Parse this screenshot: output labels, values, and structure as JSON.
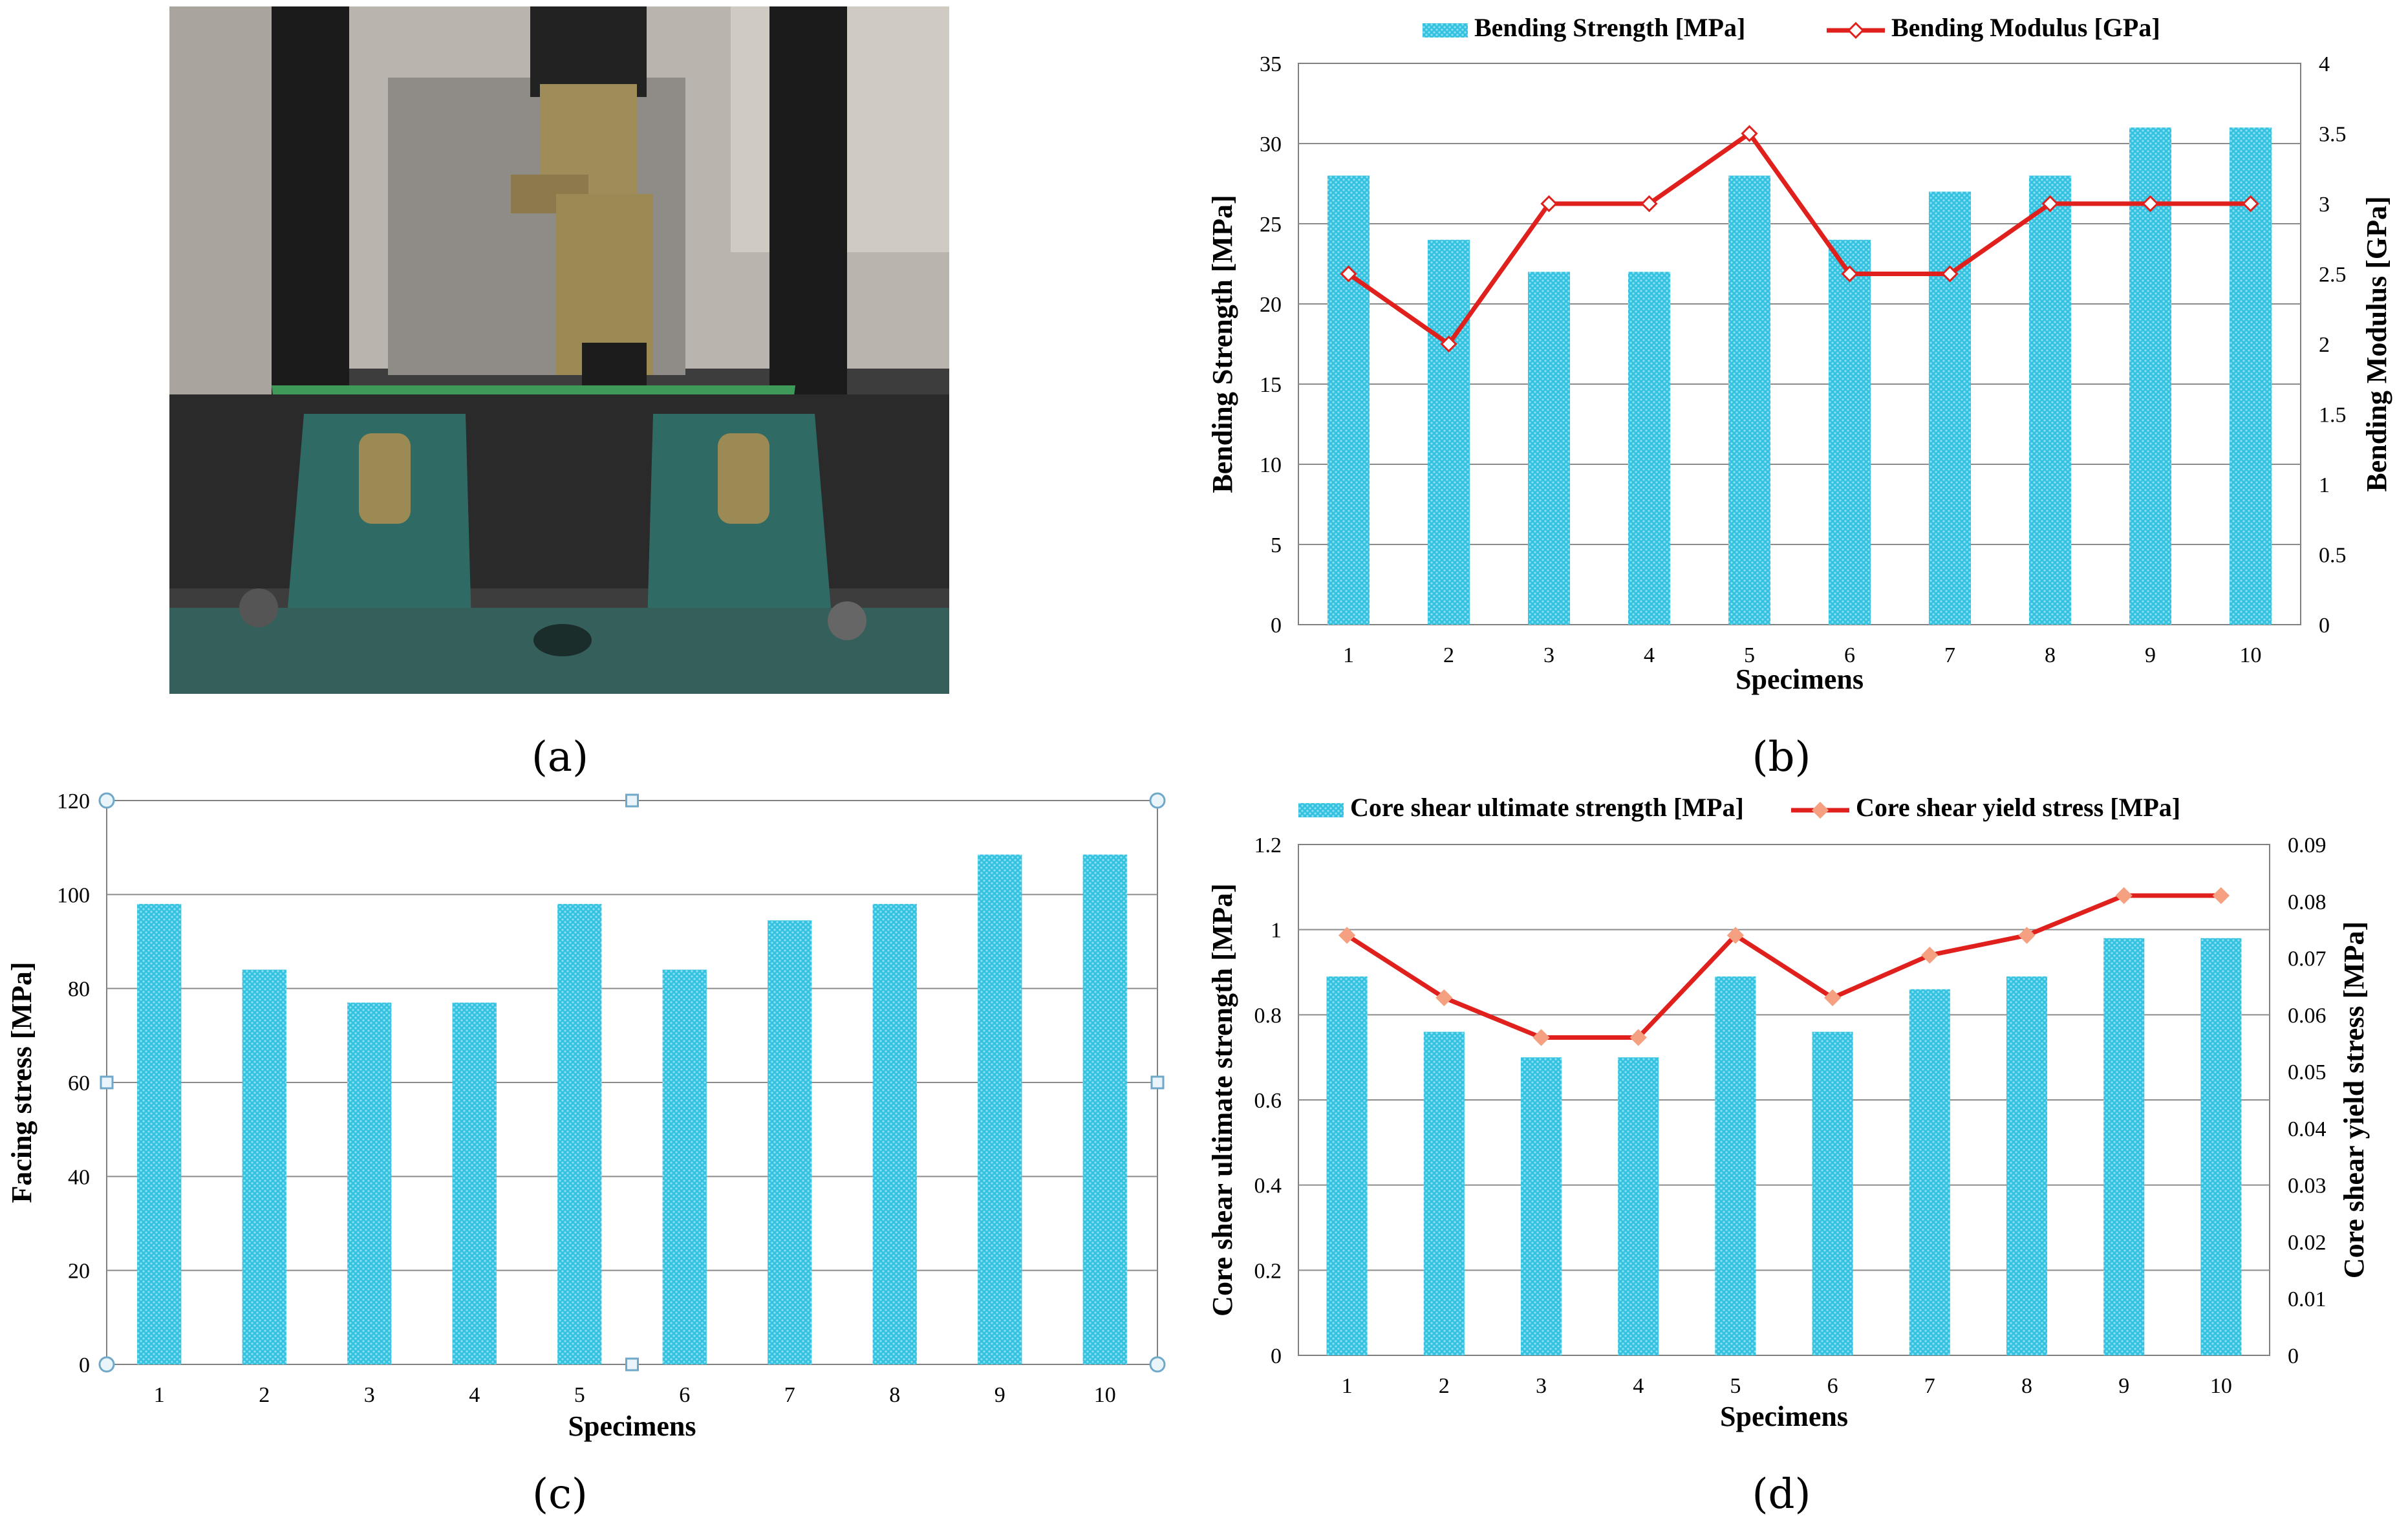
{
  "captions": {
    "a": "(a)",
    "b": "(b)",
    "c": "(c)",
    "d": "(d)"
  },
  "photo": {
    "colors": {
      "background": "#3d3d3d",
      "wall": "#b8b4ad",
      "column": "#1a1a1a",
      "plate": "#8d8a85",
      "brass": "#9c8a55",
      "specimen": "#3f9a5a",
      "support": "#2f6b64",
      "base": "#345f5b"
    }
  },
  "colors": {
    "bar": "#33c2e0",
    "bar_dots": "#8fe1f1",
    "line_b": "#e0201c",
    "line_d": "#e0201c",
    "marker_d": "#f5a080",
    "grid": "#8c8c8c",
    "axis": "#808080"
  },
  "chart_data": [
    {
      "id": "b",
      "type": "bar",
      "categories": [
        "1",
        "2",
        "3",
        "4",
        "5",
        "6",
        "7",
        "8",
        "9",
        "10"
      ],
      "series": [
        {
          "name": "Bending Strength [MPa]",
          "type": "bar",
          "axis": "left",
          "values": [
            28,
            24,
            22,
            22,
            28,
            24,
            27,
            28,
            31,
            31
          ]
        },
        {
          "name": "Bending Modulus [GPa]",
          "type": "line",
          "axis": "right",
          "values": [
            2.5,
            2,
            3,
            3,
            3.5,
            2.5,
            2.5,
            3,
            3,
            3
          ]
        }
      ],
      "xlabel": "Specimens",
      "ylabel": "Bending Strength [MPa]",
      "y2label": "Bending Modulus  [GPa]",
      "ylim": [
        0,
        35
      ],
      "yticks": [
        "0",
        "5",
        "10",
        "15",
        "20",
        "25",
        "30",
        "35"
      ],
      "y2lim": [
        0,
        4
      ],
      "y2ticks": [
        "0",
        "0.5",
        "1",
        "1.5",
        "2",
        "2.5",
        "3",
        "3.5",
        "4"
      ],
      "grid": true,
      "legend": "top"
    },
    {
      "id": "c",
      "type": "bar",
      "categories": [
        "1",
        "2",
        "3",
        "4",
        "5",
        "6",
        "7",
        "8",
        "9",
        "10"
      ],
      "series": [
        {
          "type": "bar",
          "axis": "left",
          "values": [
            98,
            84,
            77,
            77,
            98,
            84,
            94.5,
            98,
            108.5,
            108.5
          ]
        }
      ],
      "xlabel": "Specimens",
      "ylabel": "Facing stress [MPa]",
      "ylim": [
        0,
        120
      ],
      "yticks": [
        "0",
        "20",
        "40",
        "60",
        "80",
        "100",
        "120"
      ],
      "grid": true,
      "legend": "none"
    },
    {
      "id": "d",
      "type": "bar",
      "categories": [
        "1",
        "2",
        "3",
        "4",
        "5",
        "6",
        "7",
        "8",
        "9",
        "10"
      ],
      "series": [
        {
          "name": "Core shear ultimate strength [MPa]",
          "type": "bar",
          "axis": "left",
          "values": [
            0.89,
            0.76,
            0.7,
            0.7,
            0.89,
            0.76,
            0.86,
            0.89,
            0.98,
            0.98
          ]
        },
        {
          "name": "Core shear yield stress [MPa]",
          "type": "line",
          "axis": "right",
          "values": [
            0.074,
            0.063,
            0.056,
            0.056,
            0.074,
            0.063,
            0.0705,
            0.074,
            0.081,
            0.081
          ]
        }
      ],
      "xlabel": "Specimens",
      "ylabel": "Core shear ultimate strength [MPa]",
      "y2label": "Core shear yield stress [MPa]",
      "ylim": [
        0,
        1.2
      ],
      "yticks": [
        "0",
        "0.2",
        "0.4",
        "0.6",
        "0.8",
        "1",
        "1.2"
      ],
      "y2lim": [
        0,
        0.09
      ],
      "y2ticks": [
        "0",
        "0.01",
        "0.02",
        "0.03",
        "0.04",
        "0.05",
        "0.06",
        "0.07",
        "0.08",
        "0.09"
      ],
      "grid": true,
      "legend": "top"
    }
  ]
}
